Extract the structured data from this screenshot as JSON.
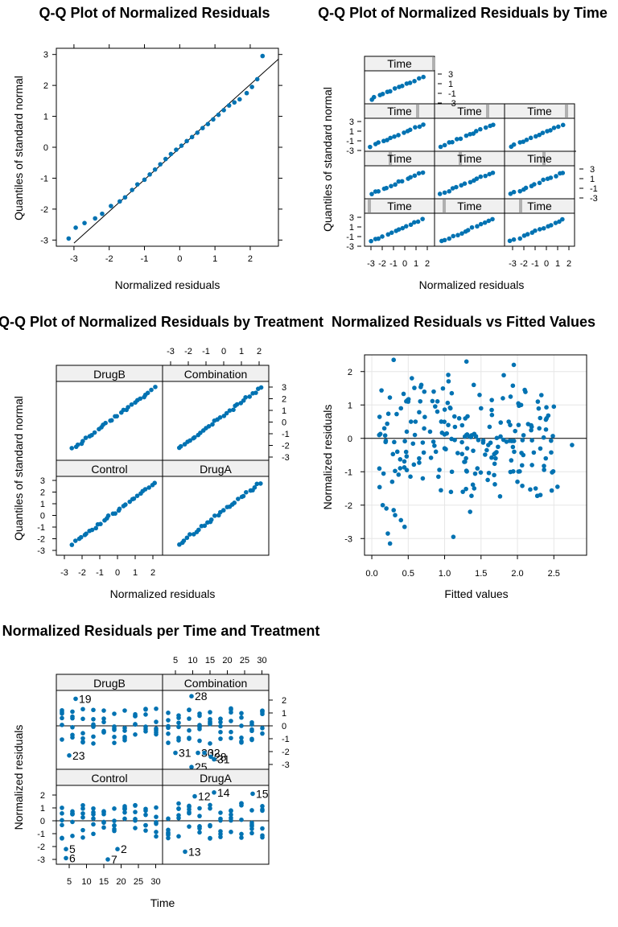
{
  "chart_data": [
    {
      "type": "scatter",
      "panel": "qq-overall",
      "title": "Q-Q Plot of Normalized Residuals",
      "xlabel": "Normalized residuals",
      "ylabel": "Quantiles of standard normal",
      "xlim": [
        -3.5,
        2.8
      ],
      "ylim": [
        -3.2,
        3.2
      ],
      "xticks": [
        "-3",
        "-2",
        "-1",
        "0",
        "1",
        "2"
      ],
      "yticks": [
        "-3",
        "-2",
        "-1",
        "0",
        "1",
        "2",
        "3"
      ],
      "reference_line": {
        "from": [
          -3.0,
          -3.1
        ],
        "to": [
          2.8,
          2.85
        ]
      },
      "points": [
        [
          -3.15,
          -2.95
        ],
        [
          -2.95,
          -2.6
        ],
        [
          -2.7,
          -2.45
        ],
        [
          -2.4,
          -2.3
        ],
        [
          -2.2,
          -2.15
        ],
        [
          -1.95,
          -1.9
        ],
        [
          -1.7,
          -1.75
        ],
        [
          -1.55,
          -1.62
        ],
        [
          -1.35,
          -1.38
        ],
        [
          -1.2,
          -1.2
        ],
        [
          -1.0,
          -1.05
        ],
        [
          -0.85,
          -0.88
        ],
        [
          -0.7,
          -0.72
        ],
        [
          -0.55,
          -0.55
        ],
        [
          -0.4,
          -0.38
        ],
        [
          -0.25,
          -0.22
        ],
        [
          -0.1,
          -0.08
        ],
        [
          0.05,
          0.05
        ],
        [
          0.2,
          0.2
        ],
        [
          0.35,
          0.33
        ],
        [
          0.5,
          0.47
        ],
        [
          0.65,
          0.62
        ],
        [
          0.8,
          0.75
        ],
        [
          0.95,
          0.9
        ],
        [
          1.1,
          1.05
        ],
        [
          1.25,
          1.2
        ],
        [
          1.4,
          1.35
        ],
        [
          1.55,
          1.45
        ],
        [
          1.7,
          1.55
        ],
        [
          1.9,
          1.75
        ],
        [
          2.05,
          1.95
        ],
        [
          2.2,
          2.2
        ],
        [
          2.35,
          2.95
        ]
      ],
      "point_color": "#0072b2"
    },
    {
      "type": "scatter",
      "panel": "qq-by-time",
      "title": "Q-Q Plot of Normalized Residuals by Time",
      "xlabel": "Normalized residuals",
      "ylabel": "Quantiles of standard normal",
      "strip_label": "Time",
      "xticks": [
        "-3",
        "-2",
        "-1",
        "0",
        "1",
        "2"
      ],
      "yticks": [
        "3",
        "1",
        "-1",
        "-3"
      ],
      "panel_count": 10
    },
    {
      "type": "scatter",
      "panel": "qq-by-treatment",
      "title": "Q-Q Plot of Normalized Residuals by Treatment",
      "xlabel": "Normalized residuals",
      "ylabel": "Quantiles of standard normal",
      "strips": [
        "DrugB",
        "Combination",
        "Control",
        "DrugA"
      ],
      "xticks": [
        "-3",
        "-2",
        "-1",
        "0",
        "1",
        "2"
      ],
      "yticks": [
        "3",
        "2",
        "1",
        "0",
        "-1",
        "-2",
        "-3"
      ]
    },
    {
      "type": "scatter",
      "panel": "residuals-vs-fitted",
      "title": "Normalized Residuals vs Fitted Values",
      "xlabel": "Fitted values",
      "ylabel": "Normalized residuals",
      "xlim": [
        -0.1,
        2.95
      ],
      "ylim": [
        -3.5,
        2.5
      ],
      "xticks": [
        "0.0",
        "0.5",
        "1.0",
        "1.5",
        "2.0",
        "2.5"
      ],
      "yticks": [
        "2",
        "1",
        "0",
        "-1",
        "-2",
        "-3"
      ],
      "grid": true,
      "points": [
        [
          0.25,
          -3.15
        ],
        [
          0.22,
          -2.85
        ],
        [
          0.32,
          -2.3
        ],
        [
          0.4,
          -2.45
        ],
        [
          1.12,
          -2.95
        ],
        [
          0.15,
          -2.0
        ],
        [
          0.2,
          -2.1
        ],
        [
          0.3,
          -2.15
        ],
        [
          0.45,
          -2.65
        ],
        [
          1.35,
          -2.2
        ],
        [
          0.3,
          2.35
        ],
        [
          1.3,
          2.3
        ],
        [
          1.95,
          2.2
        ],
        [
          0.55,
          1.8
        ],
        [
          1.05,
          1.9
        ],
        [
          1.4,
          1.6
        ],
        [
          2.1,
          1.45
        ],
        [
          2.5,
          0.95
        ],
        [
          2.75,
          -0.2
        ],
        [
          2.55,
          -1.45
        ],
        [
          0.6,
          0.5
        ],
        [
          0.8,
          0.2
        ],
        [
          1.0,
          -0.3
        ],
        [
          1.2,
          0.6
        ],
        [
          1.5,
          0.9
        ],
        [
          1.7,
          -0.6
        ],
        [
          1.9,
          0.4
        ],
        [
          2.2,
          -0.8
        ],
        [
          0.35,
          -0.4
        ],
        [
          0.5,
          1.1
        ],
        [
          0.7,
          -1.2
        ],
        [
          0.9,
          0.8
        ],
        [
          1.1,
          -1.0
        ],
        [
          1.3,
          0.1
        ],
        [
          1.6,
          -0.2
        ],
        [
          1.8,
          1.2
        ],
        [
          2.0,
          -1.3
        ],
        [
          2.3,
          0.3
        ],
        [
          0.4,
          0.9
        ],
        [
          0.65,
          -0.6
        ],
        [
          0.85,
          1.4
        ],
        [
          1.05,
          0.4
        ],
        [
          1.25,
          -1.6
        ],
        [
          1.45,
          -0.9
        ],
        [
          1.65,
          0.7
        ],
        [
          1.85,
          -0.1
        ],
        [
          2.05,
          1.0
        ],
        [
          2.25,
          -1.5
        ],
        [
          2.4,
          0.6
        ],
        [
          0.28,
          -1.3
        ],
        [
          0.48,
          0.2
        ],
        [
          0.68,
          1.6
        ],
        [
          0.88,
          -0.4
        ],
        [
          1.08,
          0.9
        ],
        [
          1.28,
          -0.7
        ],
        [
          1.48,
          1.3
        ],
        [
          1.68,
          -1.1
        ],
        [
          1.88,
          0.5
        ],
        [
          2.08,
          -0.5
        ],
        [
          2.28,
          1.1
        ]
      ],
      "point_color": "#0072b2"
    },
    {
      "type": "scatter",
      "panel": "residuals-per-time-treatment",
      "title": "Normalized Residuals per Time and Treatment",
      "xlabel": "Time",
      "ylabel": "Normalized residuals",
      "strips": [
        "DrugB",
        "Combination",
        "Control",
        "DrugA"
      ],
      "xticks": [
        "5",
        "10",
        "15",
        "20",
        "25",
        "30"
      ],
      "yticks": [
        "2",
        "1",
        "0",
        "-1",
        "-2",
        "-3"
      ],
      "labels": {
        "DrugB": [
          {
            "text": "19",
            "x": 5,
            "y": 2.1
          },
          {
            "text": "23",
            "x": 3,
            "y": -2.3
          }
        ],
        "Combination": [
          {
            "text": "28",
            "x": 8,
            "y": 2.3
          },
          {
            "text": "31",
            "x": 3,
            "y": -2.1
          },
          {
            "text": "30",
            "x": 10,
            "y": -2.1
          },
          {
            "text": "32",
            "x": 12,
            "y": -2.1
          },
          {
            "text": "28",
            "x": 14,
            "y": -2.4
          },
          {
            "text": "31",
            "x": 15,
            "y": -2.6
          },
          {
            "text": "25",
            "x": 8,
            "y": -3.2
          }
        ],
        "Control": [
          {
            "text": "5",
            "x": 2,
            "y": -2.2
          },
          {
            "text": "6",
            "x": 2,
            "y": -2.9
          },
          {
            "text": "2",
            "x": 18,
            "y": -2.2
          },
          {
            "text": "7",
            "x": 15,
            "y": -3.0
          }
        ],
        "DrugA": [
          {
            "text": "12",
            "x": 9,
            "y": 1.9
          },
          {
            "text": "14",
            "x": 15,
            "y": 2.2
          },
          {
            "text": "15",
            "x": 27,
            "y": 2.1
          },
          {
            "text": "13",
            "x": 6,
            "y": -2.4
          }
        ]
      }
    }
  ],
  "colors": {
    "point": "#0072b2",
    "strip_bg": "#f0f0f0",
    "strip_bar": "#b0b0b0",
    "grid": "#e6e6e6"
  }
}
